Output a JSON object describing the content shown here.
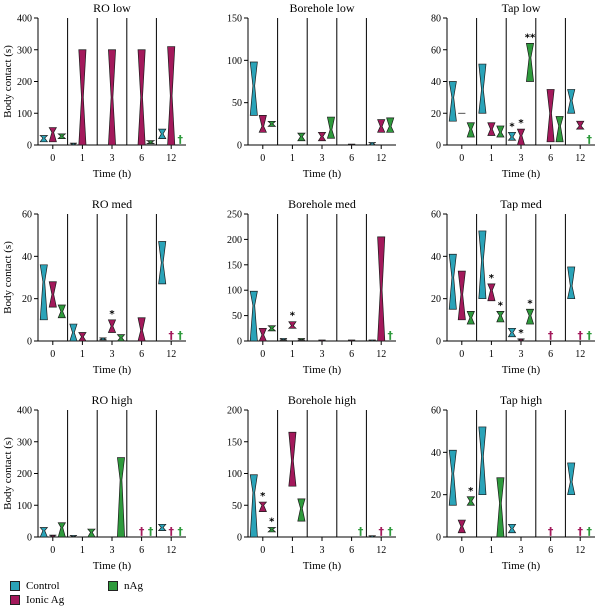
{
  "colors": {
    "control": "#2aa3b8",
    "ionic": "#a3195b",
    "nag": "#2e9a3c"
  },
  "legend": [
    {
      "key": "control",
      "label": "Control"
    },
    {
      "key": "nag",
      "label": "nAg"
    },
    {
      "key": "ionic",
      "label": "Ionic Ag"
    }
  ],
  "chart_data": [
    {
      "type": "violin",
      "title": "RO low",
      "xlabel": "Time (h)",
      "ylabel": "Body contact (s)",
      "ylim": [
        0,
        400
      ],
      "yticks": [
        0,
        100,
        200,
        300,
        400
      ],
      "xticks": [
        "0",
        "1",
        "3",
        "6",
        "12"
      ],
      "groups": [
        {
          "control": [
            10,
            30,
            22
          ],
          "ionic": [
            10,
            55,
            40
          ],
          "nag": [
            20,
            35,
            28
          ],
          "marks": {}
        },
        {
          "control": [
            0,
            6,
            3
          ],
          "ionic": [
            0,
            300,
            150
          ],
          "nag": null,
          "marks": {}
        },
        {
          "control": null,
          "ionic": [
            0,
            300,
            150
          ],
          "nag": null,
          "marks": {}
        },
        {
          "control": null,
          "ionic": [
            0,
            300,
            150
          ],
          "nag": [
            4,
            14,
            9
          ],
          "marks": {}
        },
        {
          "control": [
            20,
            50,
            35
          ],
          "ionic": [
            0,
            310,
            155
          ],
          "nag": null,
          "marks": {
            "nag": "†"
          }
        }
      ]
    },
    {
      "type": "violin",
      "title": "Borehole low",
      "xlabel": "Time (h)",
      "ylabel": "",
      "ylim": [
        0,
        150
      ],
      "yticks": [
        0,
        50,
        100,
        150
      ],
      "xticks": [
        "0",
        "1",
        "3",
        "6",
        "12"
      ],
      "groups": [
        {
          "control": [
            35,
            98,
            70
          ],
          "ionic": [
            15,
            35,
            22
          ],
          "nag": [
            22,
            28,
            25
          ],
          "marks": {}
        },
        {
          "control": null,
          "ionic": null,
          "nag": [
            5,
            14,
            10
          ],
          "marks": {}
        },
        {
          "control": null,
          "ionic": [
            5,
            15,
            10
          ],
          "nag": [
            8,
            33,
            18
          ],
          "marks": {}
        },
        {
          "control": null,
          "ionic": [
            0,
            1,
            0.5
          ],
          "nag": null,
          "marks": {}
        },
        {
          "control": [
            0,
            3,
            1.5
          ],
          "ionic": [
            15,
            30,
            22
          ],
          "nag": [
            15,
            32,
            22
          ],
          "marks": {}
        }
      ]
    },
    {
      "type": "violin",
      "title": "Tap low",
      "xlabel": "Time (h)",
      "ylabel": "",
      "ylim": [
        0,
        80
      ],
      "yticks": [
        0,
        20,
        40,
        60,
        80
      ],
      "xticks": [
        "0",
        "1",
        "3",
        "6",
        "12"
      ],
      "groups": [
        {
          "control": [
            15,
            40,
            30
          ],
          "ionic": [
            20,
            20,
            20
          ],
          "nag": [
            5,
            14,
            10
          ],
          "marks": {}
        },
        {
          "control": [
            20,
            51,
            35
          ],
          "ionic": [
            6,
            14,
            10
          ],
          "nag": [
            5,
            12,
            8
          ],
          "marks": {}
        },
        {
          "control": [
            3,
            8,
            5
          ],
          "ionic": [
            0,
            10,
            6
          ],
          "nag": [
            40,
            64,
            55
          ],
          "marks": {
            "control": "*",
            "ionic": "*",
            "nag": "**"
          }
        },
        {
          "control": null,
          "ionic": [
            2,
            35,
            20
          ],
          "nag": [
            2,
            18,
            12
          ],
          "marks": {}
        },
        {
          "control": [
            20,
            35,
            28
          ],
          "ionic": [
            10,
            15,
            12
          ],
          "nag": null,
          "marks": {
            "nag": "†"
          }
        }
      ]
    },
    {
      "type": "violin",
      "title": "RO med",
      "xlabel": "Time (h)",
      "ylabel": "Body contact (s)",
      "ylim": [
        0,
        60
      ],
      "yticks": [
        0,
        20,
        40,
        60
      ],
      "xticks": [
        "0",
        "1",
        "3",
        "6",
        "12"
      ],
      "groups": [
        {
          "control": [
            10,
            36,
            28
          ],
          "ionic": [
            16,
            28,
            22
          ],
          "nag": [
            11,
            17,
            14
          ],
          "marks": {}
        },
        {
          "control": [
            0,
            8,
            4
          ],
          "ionic": [
            0,
            4,
            2
          ],
          "nag": null,
          "marks": {}
        },
        {
          "control": [
            0.5,
            1.5,
            1
          ],
          "ionic": [
            4,
            10,
            7
          ],
          "nag": [
            0,
            3,
            1.5
          ],
          "marks": {
            "ionic": "*"
          }
        },
        {
          "control": null,
          "ionic": [
            0,
            11,
            5
          ],
          "nag": null,
          "marks": {}
        },
        {
          "control": [
            27,
            47,
            37
          ],
          "ionic": null,
          "nag": null,
          "marks": {
            "ionic": "†",
            "nag": "†"
          }
        }
      ]
    },
    {
      "type": "violin",
      "title": "Borehole med",
      "xlabel": "Time (h)",
      "ylabel": "",
      "ylim": [
        0,
        250
      ],
      "yticks": [
        0,
        50,
        100,
        150,
        200,
        250
      ],
      "xticks": [
        "0",
        "1",
        "3",
        "6",
        "12"
      ],
      "groups": [
        {
          "control": [
            0,
            98,
            70
          ],
          "ionic": [
            0,
            25,
            12
          ],
          "nag": [
            20,
            30,
            25
          ],
          "marks": {}
        },
        {
          "control": [
            2,
            5,
            3
          ],
          "ionic": [
            25,
            38,
            30
          ],
          "nag": [
            2,
            5,
            3
          ],
          "marks": {
            "ionic": "*"
          }
        },
        {
          "control": null,
          "ionic": [
            0,
            2,
            1
          ],
          "nag": null,
          "marks": {}
        },
        {
          "control": null,
          "ionic": [
            0,
            2,
            1
          ],
          "nag": null,
          "marks": {}
        },
        {
          "control": [
            0,
            2,
            1
          ],
          "ionic": [
            0,
            205,
            100
          ],
          "nag": null,
          "marks": {
            "nag": "†"
          }
        }
      ]
    },
    {
      "type": "violin",
      "title": "Tap med",
      "xlabel": "Time (h)",
      "ylabel": "",
      "ylim": [
        0,
        60
      ],
      "yticks": [
        0,
        20,
        40,
        60
      ],
      "xticks": [
        "0",
        "1",
        "3",
        "6",
        "12"
      ],
      "groups": [
        {
          "control": [
            15,
            41,
            30
          ],
          "ionic": [
            10,
            33,
            22
          ],
          "nag": [
            8,
            14,
            11
          ],
          "marks": {}
        },
        {
          "control": [
            20,
            52,
            38
          ],
          "ionic": [
            19,
            27,
            24
          ],
          "nag": [
            9,
            14,
            12
          ],
          "marks": {
            "ionic": "*",
            "nag": "*"
          }
        },
        {
          "control": [
            2,
            6,
            4
          ],
          "ionic": [
            0,
            1,
            0.5
          ],
          "nag": [
            8,
            15,
            12
          ],
          "marks": {
            "ionic": "*",
            "nag": "*"
          }
        },
        {
          "control": null,
          "ionic": null,
          "nag": null,
          "marks": {
            "ionic": "†"
          }
        },
        {
          "control": [
            20,
            35,
            26
          ],
          "ionic": null,
          "nag": null,
          "marks": {
            "ionic": "†",
            "nag": "†"
          }
        }
      ]
    },
    {
      "type": "violin",
      "title": "RO high",
      "xlabel": "Time (h)",
      "ylabel": "Body contact (s)",
      "ylim": [
        0,
        400
      ],
      "yticks": [
        0,
        100,
        200,
        300,
        400
      ],
      "xticks": [
        "0",
        "1",
        "3",
        "6",
        "12"
      ],
      "groups": [
        {
          "control": [
            0,
            30,
            20
          ],
          "ionic": [
            0,
            6,
            3
          ],
          "nag": [
            0,
            45,
            30
          ],
          "marks": {}
        },
        {
          "control": [
            0,
            5,
            2
          ],
          "ionic": null,
          "nag": [
            0,
            25,
            15
          ],
          "marks": {}
        },
        {
          "control": null,
          "ionic": null,
          "nag": [
            0,
            250,
            180
          ],
          "marks": {}
        },
        {
          "control": null,
          "ionic": null,
          "nag": null,
          "marks": {
            "ionic": "†",
            "nag": "†"
          }
        },
        {
          "control": [
            20,
            40,
            30
          ],
          "ionic": null,
          "nag": null,
          "marks": {
            "ionic": "†",
            "nag": "†"
          }
        }
      ]
    },
    {
      "type": "violin",
      "title": "Borehole high",
      "xlabel": "Time (h)",
      "ylabel": "",
      "ylim": [
        0,
        200
      ],
      "yticks": [
        0,
        50,
        100,
        150,
        200
      ],
      "xticks": [
        "0",
        "1",
        "3",
        "6",
        "12"
      ],
      "groups": [
        {
          "control": [
            0,
            98,
            70
          ],
          "ionic": [
            40,
            55,
            50
          ],
          "nag": [
            8,
            15,
            12
          ],
          "marks": {
            "ionic": "*",
            "nag": "*"
          }
        },
        {
          "control": null,
          "ionic": [
            80,
            165,
            120
          ],
          "nag": [
            25,
            60,
            45
          ],
          "marks": {}
        },
        {
          "control": null,
          "ionic": null,
          "nag": null,
          "marks": {}
        },
        {
          "control": null,
          "ionic": null,
          "nag": null,
          "marks": {
            "nag": "†"
          }
        },
        {
          "control": [
            0,
            2,
            1
          ],
          "ionic": null,
          "nag": null,
          "marks": {
            "ionic": "†",
            "nag": "†"
          }
        }
      ]
    },
    {
      "type": "violin",
      "title": "Tap high",
      "xlabel": "Time (h)",
      "ylabel": "",
      "ylim": [
        0,
        60
      ],
      "yticks": [
        0,
        20,
        40,
        60
      ],
      "xticks": [
        "0",
        "1",
        "3",
        "6",
        "12"
      ],
      "groups": [
        {
          "control": [
            15,
            41,
            30
          ],
          "ionic": [
            2,
            8,
            5
          ],
          "nag": [
            15,
            19,
            17
          ],
          "marks": {
            "nag": "*"
          }
        },
        {
          "control": [
            20,
            52,
            38
          ],
          "ionic": null,
          "nag": [
            0,
            28,
            16
          ],
          "marks": {}
        },
        {
          "control": [
            2,
            6,
            4
          ],
          "ionic": null,
          "nag": null,
          "marks": {}
        },
        {
          "control": null,
          "ionic": null,
          "nag": null,
          "marks": {
            "ionic": "†"
          }
        },
        {
          "control": [
            20,
            35,
            26
          ],
          "ionic": null,
          "nag": null,
          "marks": {
            "ionic": "†",
            "nag": "†"
          }
        }
      ]
    }
  ]
}
